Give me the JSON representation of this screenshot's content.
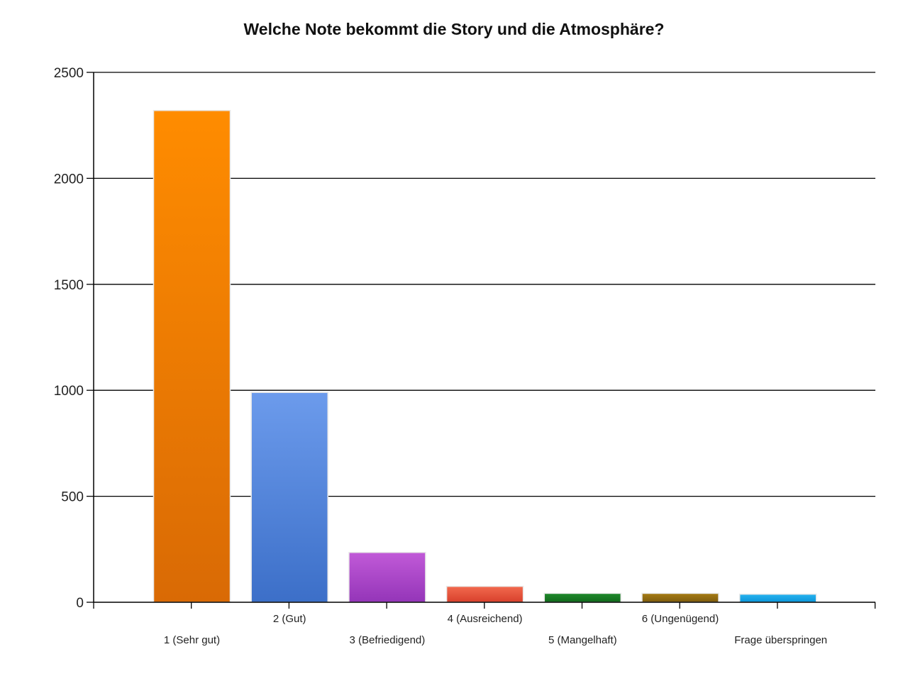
{
  "chart_data": {
    "type": "bar",
    "title": "Welche Note bekommt die Story und die Atmosphäre?",
    "xlabel": "",
    "ylabel": "",
    "ylim": [
      0,
      2500
    ],
    "yticks": [
      "0",
      "500",
      "1000",
      "1500",
      "2000",
      "2500"
    ],
    "categories": [
      "1 (Sehr gut)",
      "2 (Gut)",
      "3 (Befriedigend)",
      "4 (Ausreichend)",
      "5 (Mangelhaft)",
      "6 (Ungenügend)",
      "Frage überspringen"
    ],
    "values": [
      2320,
      990,
      235,
      75,
      42,
      42,
      38
    ],
    "colors": [
      [
        "#ff8c00",
        "#d96a05"
      ],
      [
        "#6c9bec",
        "#3c6fc8"
      ],
      [
        "#c15ad8",
        "#9435b8"
      ],
      [
        "#f26a4e",
        "#d8402c"
      ],
      [
        "#1f8a2c",
        "#126a1c"
      ],
      [
        "#a67c15",
        "#7e5c0e"
      ],
      [
        "#27b3f0",
        "#0b95d8"
      ]
    ],
    "grid": true,
    "legend": "none"
  }
}
